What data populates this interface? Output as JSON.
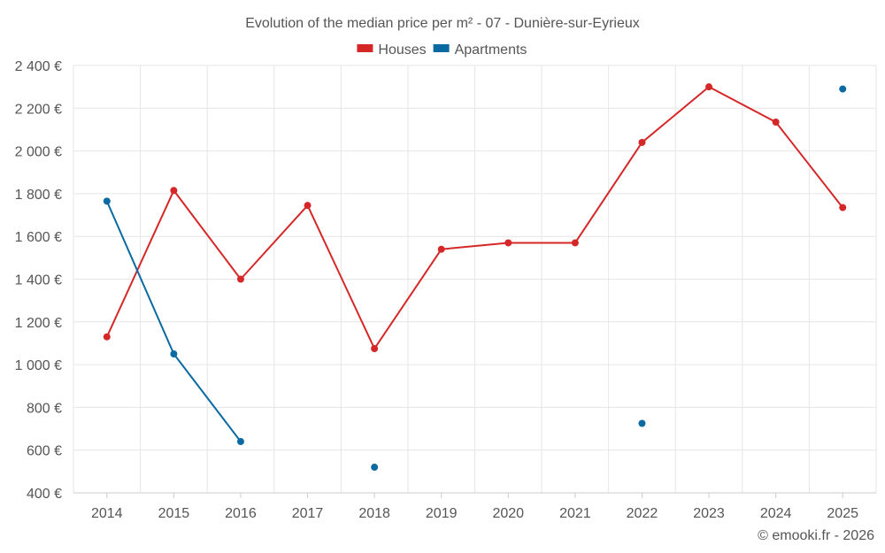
{
  "chart_data": {
    "type": "line",
    "title": "Evolution of the median price per m² - 07 - Dunière-sur-Eyrieux",
    "categories": [
      "2014",
      "2015",
      "2016",
      "2017",
      "2018",
      "2019",
      "2020",
      "2021",
      "2022",
      "2023",
      "2024",
      "2025"
    ],
    "series": [
      {
        "name": "Houses",
        "color": "#d62728",
        "values": [
          1130,
          1815,
          1400,
          1745,
          1075,
          1540,
          1570,
          1570,
          2040,
          2300,
          2135,
          1735
        ]
      },
      {
        "name": "Apartments",
        "color": "#0a6aa1",
        "values": [
          1765,
          1050,
          640,
          null,
          520,
          null,
          null,
          null,
          725,
          null,
          null,
          2290
        ]
      }
    ],
    "ylim": [
      400,
      2400
    ],
    "yticks": [
      400,
      600,
      800,
      1000,
      1200,
      1400,
      1600,
      1800,
      2000,
      2200,
      2400
    ],
    "ytick_labels": [
      "400 €",
      "600 €",
      "800 €",
      "1 000 €",
      "1 200 €",
      "1 400 €",
      "1 600 €",
      "1 800 €",
      "2 000 €",
      "2 200 €",
      "2 400 €"
    ],
    "grid": true,
    "legend_position": "top-center"
  },
  "credit": "© emooki.fr - 2026"
}
